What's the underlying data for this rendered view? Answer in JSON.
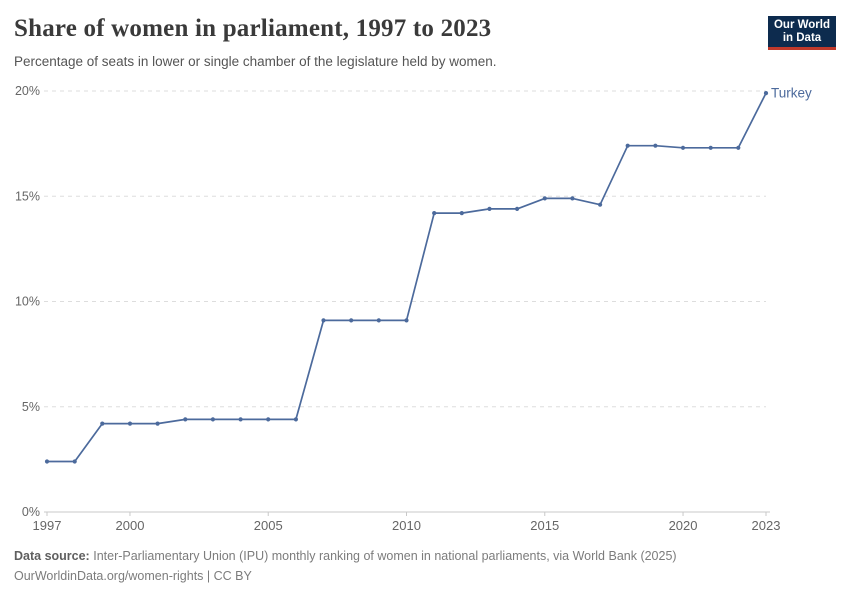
{
  "header": {
    "title": "Share of women in parliament, 1997 to 2023",
    "subtitle": "Percentage of seats in lower or single chamber of the legislature held by women.",
    "logo": {
      "line1": "Our World",
      "line2": "in Data",
      "bg_color": "#0d2b4e",
      "accent_color": "#c0392b"
    }
  },
  "chart_data": {
    "type": "line",
    "title": "Share of women in parliament, 1997 to 2023",
    "xlabel": "",
    "ylabel": "",
    "xlim": [
      1997,
      2023
    ],
    "ylim": [
      0,
      20
    ],
    "x_ticks": [
      1997,
      2000,
      2005,
      2010,
      2015,
      2020,
      2023
    ],
    "y_ticks": [
      {
        "value": 0,
        "label": "0%"
      },
      {
        "value": 5,
        "label": "5%"
      },
      {
        "value": 10,
        "label": "10%"
      },
      {
        "value": 15,
        "label": "15%"
      },
      {
        "value": 20,
        "label": "20%"
      }
    ],
    "grid": "horizontal-dashed",
    "legend_position": "end-of-line-label",
    "series": [
      {
        "name": "Turkey",
        "color": "#4c6a9c",
        "x": [
          1997,
          1998,
          1999,
          2000,
          2001,
          2002,
          2003,
          2004,
          2005,
          2006,
          2007,
          2008,
          2009,
          2010,
          2011,
          2012,
          2013,
          2014,
          2015,
          2016,
          2017,
          2018,
          2019,
          2020,
          2021,
          2022,
          2023
        ],
        "values": [
          2.4,
          2.4,
          4.2,
          4.2,
          4.2,
          4.4,
          4.4,
          4.4,
          4.4,
          4.4,
          9.1,
          9.1,
          9.1,
          9.1,
          14.2,
          14.2,
          14.4,
          14.4,
          14.9,
          14.9,
          14.6,
          17.4,
          17.4,
          17.3,
          17.3,
          17.3,
          19.9
        ]
      }
    ],
    "colors": {
      "gridline": "#dddddd",
      "axis_line": "#c8c8c8",
      "tick_label": "#666666"
    }
  },
  "footer": {
    "source_label": "Data source:",
    "source_text": "Inter-Parliamentary Union (IPU) monthly ranking of women in national parliaments, via World Bank (2025)",
    "link_line": "OurWorldinData.org/women-rights | CC BY"
  }
}
